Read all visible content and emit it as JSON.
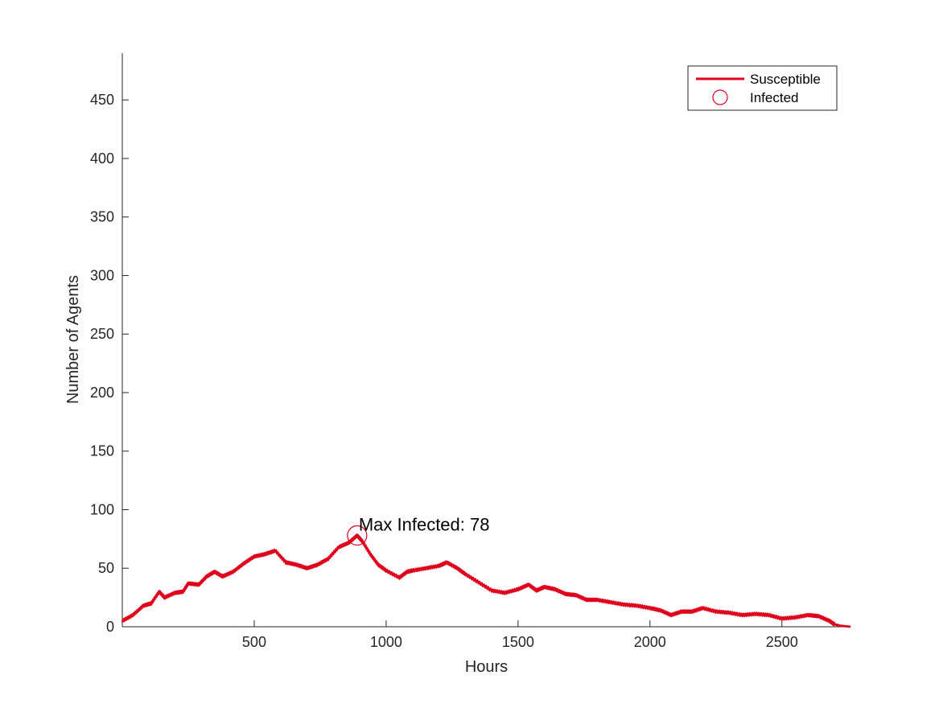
{
  "chart_data": {
    "type": "line",
    "title": "",
    "xlabel": "Hours",
    "ylabel": "Number of Agents",
    "xlim": [
      0,
      2760
    ],
    "ylim": [
      0,
      490
    ],
    "xticks": [
      500,
      1000,
      1500,
      2000,
      2500
    ],
    "yticks": [
      0,
      50,
      100,
      150,
      200,
      250,
      300,
      350,
      400,
      450
    ],
    "grid": false,
    "legend_position": "top-right",
    "colors": {
      "series": "#e0001b",
      "axis": "#262626"
    },
    "series": [
      {
        "name": "Susceptible",
        "style": "line",
        "x": [
          0,
          40,
          80,
          110,
          140,
          160,
          200,
          230,
          250,
          290,
          320,
          350,
          380,
          420,
          460,
          500,
          540,
          580,
          620,
          660,
          700,
          740,
          780,
          820,
          860,
          890,
          910,
          940,
          970,
          1000,
          1050,
          1080,
          1100,
          1150,
          1200,
          1230,
          1270,
          1300,
          1350,
          1400,
          1450,
          1500,
          1540,
          1570,
          1600,
          1640,
          1680,
          1720,
          1760,
          1800,
          1850,
          1900,
          1950,
          2000,
          2040,
          2080,
          2120,
          2160,
          2200,
          2250,
          2300,
          2350,
          2400,
          2450,
          2500,
          2550,
          2600,
          2640,
          2680,
          2700,
          2720,
          2760
        ],
        "y": [
          5,
          10,
          18,
          20,
          30,
          25,
          29,
          30,
          37,
          36,
          43,
          47,
          43,
          47,
          54,
          60,
          62,
          65,
          55,
          53,
          50,
          53,
          58,
          68,
          72,
          78,
          73,
          62,
          53,
          48,
          42,
          47,
          48,
          50,
          52,
          55,
          50,
          45,
          38,
          31,
          29,
          32,
          36,
          31,
          34,
          32,
          28,
          27,
          23,
          23,
          21,
          19,
          18,
          16,
          14,
          10,
          13,
          13,
          16,
          13,
          12,
          10,
          11,
          10,
          7,
          8,
          10,
          9,
          5,
          2,
          1,
          0
        ]
      },
      {
        "name": "Infected",
        "style": "circle-marker",
        "x": [
          890
        ],
        "y": [
          78
        ]
      }
    ],
    "annotations": [
      {
        "text": "Max Infected: 78",
        "x": 890,
        "y": 78
      }
    ]
  }
}
